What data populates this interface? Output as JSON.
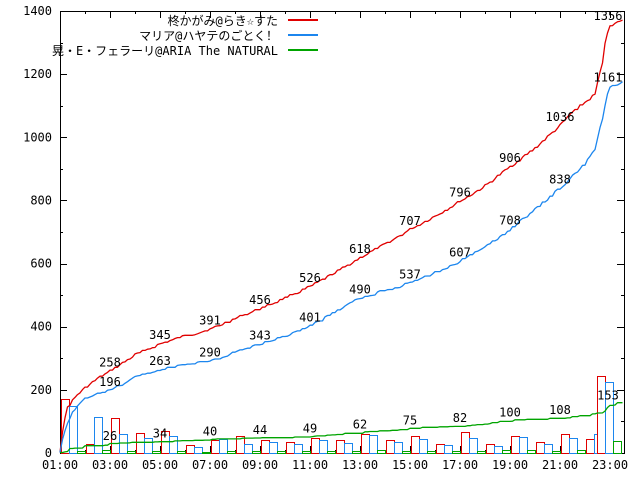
{
  "legend": [
    {
      "label": "柊かがみ@らき☆すた",
      "color": "#e00000"
    },
    {
      "label": "マリア@ハヤテのごとく！",
      "color": "#1c86ee"
    },
    {
      "label": "晃・E・フェラーリ@ARIA The NATURAL",
      "color": "#00a400"
    }
  ],
  "chart_data": {
    "type": "line",
    "title": "",
    "grid": false,
    "legend_position": "top-center",
    "xlabel": "",
    "ylabel": "",
    "ylim": [
      0,
      1400
    ],
    "y_ticks": [
      0,
      200,
      400,
      600,
      800,
      1000,
      1200,
      1400
    ],
    "y_minor_ticks": [
      100,
      300,
      500,
      700,
      900,
      1100,
      1300
    ],
    "x_tick_labels": [
      "01:00",
      "03:00",
      "05:00",
      "07:00",
      "09:00",
      "11:00",
      "13:00",
      "15:00",
      "17:00",
      "19:00",
      "21:00",
      "23:00"
    ],
    "x_tick_hours": [
      1,
      3,
      5,
      7,
      9,
      11,
      13,
      15,
      17,
      19,
      21,
      23
    ],
    "x_minor_hours": [
      2,
      4,
      6,
      8,
      10,
      12,
      14,
      16,
      18,
      20,
      22
    ],
    "label_hours": [
      3,
      5,
      7,
      9,
      11,
      13,
      15,
      17,
      19,
      21,
      23
    ],
    "series": [
      {
        "name": "柊かがみ@らき☆すた",
        "color": "#e00000",
        "label_values": [
          258,
          345,
          391,
          456,
          526,
          618,
          707,
          796,
          906,
          1036,
          1356
        ],
        "shape_points": [
          [
            1,
            5
          ],
          [
            1.1,
            70
          ],
          [
            1.3,
            145
          ],
          [
            1.7,
            185
          ],
          [
            2,
            205
          ],
          [
            2.5,
            235
          ],
          [
            3,
            258
          ],
          [
            4,
            310
          ],
          [
            5,
            345
          ],
          [
            6,
            370
          ],
          [
            7,
            391
          ],
          [
            8,
            425
          ],
          [
            9,
            456
          ],
          [
            10,
            490
          ],
          [
            11,
            526
          ],
          [
            12,
            570
          ],
          [
            13,
            618
          ],
          [
            14,
            660
          ],
          [
            15,
            707
          ],
          [
            16,
            750
          ],
          [
            17,
            796
          ],
          [
            18,
            845
          ],
          [
            19,
            906
          ],
          [
            20,
            965
          ],
          [
            21,
            1036
          ],
          [
            21.5,
            1080
          ],
          [
            22,
            1110
          ],
          [
            22.4,
            1135
          ],
          [
            22.7,
            1240
          ],
          [
            22.85,
            1320
          ],
          [
            23,
            1356
          ],
          [
            23.5,
            1368
          ]
        ]
      },
      {
        "name": "マリア@ハヤテのごとく！",
        "color": "#1c86ee",
        "label_values": [
          196,
          263,
          290,
          343,
          401,
          490,
          537,
          607,
          708,
          838,
          1161
        ],
        "shape_points": [
          [
            1,
            3
          ],
          [
            1.15,
            60
          ],
          [
            1.5,
            130
          ],
          [
            1.8,
            160
          ],
          [
            2,
            170
          ],
          [
            2.5,
            185
          ],
          [
            3,
            196
          ],
          [
            4,
            240
          ],
          [
            5,
            263
          ],
          [
            6,
            278
          ],
          [
            7,
            290
          ],
          [
            8,
            320
          ],
          [
            9,
            343
          ],
          [
            10,
            370
          ],
          [
            11,
            401
          ],
          [
            12,
            445
          ],
          [
            13,
            490
          ],
          [
            14,
            515
          ],
          [
            15,
            537
          ],
          [
            16,
            570
          ],
          [
            17,
            607
          ],
          [
            18,
            650
          ],
          [
            19,
            708
          ],
          [
            20,
            770
          ],
          [
            21,
            838
          ],
          [
            21.5,
            878
          ],
          [
            22,
            915
          ],
          [
            22.4,
            960
          ],
          [
            22.7,
            1060
          ],
          [
            22.85,
            1120
          ],
          [
            23,
            1161
          ],
          [
            23.5,
            1172
          ]
        ]
      },
      {
        "name": "晃・E・フェラーリ@ARIA The NATURAL",
        "color": "#00a400",
        "label_values": [
          26,
          34,
          40,
          44,
          49,
          62,
          75,
          82,
          100,
          108,
          153
        ],
        "shape_points": [
          [
            1,
            2
          ],
          [
            1.5,
            12
          ],
          [
            2,
            18
          ],
          [
            3,
            26
          ],
          [
            4,
            30
          ],
          [
            5,
            34
          ],
          [
            6,
            37
          ],
          [
            7,
            40
          ],
          [
            8,
            42
          ],
          [
            9,
            44
          ],
          [
            10,
            46
          ],
          [
            11,
            49
          ],
          [
            12,
            55
          ],
          [
            13,
            62
          ],
          [
            14,
            68
          ],
          [
            15,
            75
          ],
          [
            16,
            78
          ],
          [
            17,
            82
          ],
          [
            18,
            90
          ],
          [
            19,
            100
          ],
          [
            20,
            104
          ],
          [
            21,
            108
          ],
          [
            22,
            116
          ],
          [
            22.7,
            128
          ],
          [
            23,
            153
          ],
          [
            23.5,
            158
          ]
        ]
      }
    ],
    "bars": {
      "style": "hollow-boxes",
      "hours": [
        1,
        2,
        3,
        4,
        5,
        6,
        7,
        8,
        9,
        10,
        11,
        12,
        13,
        14,
        15,
        16,
        17,
        18,
        19,
        20,
        21,
        22,
        23
      ],
      "series": [
        {
          "name": "red-bars",
          "color": "#e00000",
          "values": [
            170,
            30,
            110,
            62,
            70,
            26,
            40,
            55,
            42,
            35,
            48,
            40,
            60,
            42,
            55,
            30,
            65,
            28,
            55,
            35,
            60,
            45,
            245
          ]
        },
        {
          "name": "blue-bars",
          "color": "#1c86ee",
          "values": [
            150,
            115,
            60,
            48,
            55,
            20,
            45,
            30,
            35,
            28,
            40,
            32,
            58,
            35,
            45,
            25,
            48,
            22,
            50,
            28,
            48,
            60,
            225
          ]
        },
        {
          "name": "green-bars",
          "color": "#00a400",
          "values": [
            5,
            8,
            6,
            5,
            5,
            4,
            6,
            5,
            6,
            5,
            6,
            5,
            8,
            5,
            6,
            5,
            7,
            8,
            8,
            6,
            8,
            14,
            38
          ]
        }
      ]
    }
  }
}
